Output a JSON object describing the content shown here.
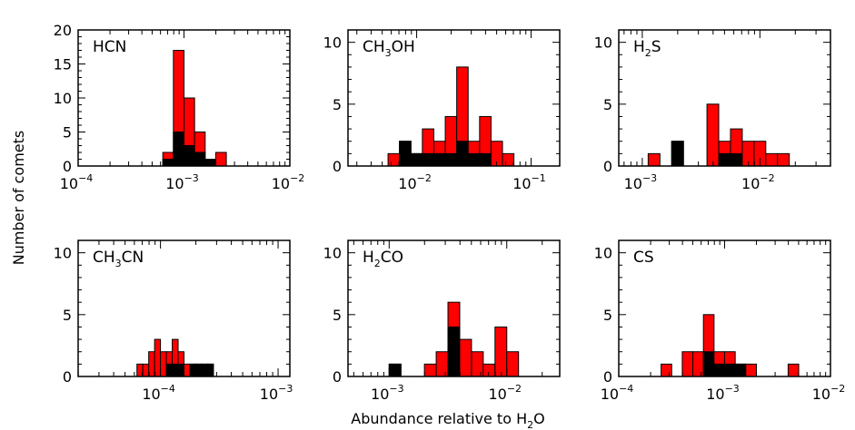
{
  "ylabel": "Number of comets",
  "xlabel_main": "Abundance relative to H",
  "xlabel_sub": "2",
  "xlabel_tail": "O",
  "colors": {
    "total": "#ff0000",
    "subset": "#000000",
    "frame": "#000000"
  },
  "chart_data": [
    {
      "type": "bar",
      "title_parts": [
        "HCN"
      ],
      "xscale": "log",
      "xlim": [
        -4,
        -2
      ],
      "xticks": [
        {
          "exp": -4,
          "label": "10",
          "sup": "−4"
        },
        {
          "exp": -3,
          "label": "10",
          "sup": "−3"
        },
        {
          "exp": -2,
          "label": "10",
          "sup": "−2"
        }
      ],
      "ylim": [
        0,
        20
      ],
      "yticks": [
        0,
        5,
        10,
        15,
        20
      ],
      "bin_width_log": 0.1,
      "bins": [
        {
          "log_left": -3.2,
          "total": 2,
          "black": 1
        },
        {
          "log_left": -3.1,
          "total": 17,
          "black": 5
        },
        {
          "log_left": -3.0,
          "total": 10,
          "black": 3
        },
        {
          "log_left": -2.9,
          "total": 5,
          "black": 2
        },
        {
          "log_left": -2.8,
          "total": 1,
          "black": 1
        },
        {
          "log_left": -2.7,
          "total": 2,
          "black": 0
        }
      ]
    },
    {
      "type": "bar",
      "title_parts": [
        "CH",
        "3",
        "OH"
      ],
      "xscale": "log",
      "xlim": [
        -2.6,
        -0.75
      ],
      "xticks": [
        {
          "exp": -2,
          "label": "10",
          "sup": "−2"
        },
        {
          "exp": -1,
          "label": "10",
          "sup": "−1"
        }
      ],
      "ylim": [
        0,
        11
      ],
      "yticks": [
        0,
        5,
        10
      ],
      "bin_width_log": 0.1,
      "bins": [
        {
          "log_left": -2.25,
          "total": 1,
          "black": 0
        },
        {
          "log_left": -2.15,
          "total": 2,
          "black": 2
        },
        {
          "log_left": -2.05,
          "total": 1,
          "black": 1
        },
        {
          "log_left": -1.95,
          "total": 3,
          "black": 1
        },
        {
          "log_left": -1.85,
          "total": 2,
          "black": 1
        },
        {
          "log_left": -1.75,
          "total": 4,
          "black": 1
        },
        {
          "log_left": -1.65,
          "total": 8,
          "black": 2
        },
        {
          "log_left": -1.55,
          "total": 2,
          "black": 1
        },
        {
          "log_left": -1.45,
          "total": 4,
          "black": 1
        },
        {
          "log_left": -1.35,
          "total": 2,
          "black": 0
        },
        {
          "log_left": -1.25,
          "total": 1,
          "black": 0
        }
      ]
    },
    {
      "type": "bar",
      "title_parts": [
        "H",
        "2",
        "S"
      ],
      "xscale": "log",
      "xlim": [
        -3.2,
        -1.4
      ],
      "xticks": [
        {
          "exp": -3,
          "label": "10",
          "sup": "−3"
        },
        {
          "exp": -2,
          "label": "10",
          "sup": "−2"
        }
      ],
      "ylim": [
        0,
        11
      ],
      "yticks": [
        0,
        5,
        10
      ],
      "bin_width_log": 0.1,
      "bins": [
        {
          "log_left": -2.95,
          "total": 1,
          "black": 0
        },
        {
          "log_left": -2.75,
          "total": 2,
          "black": 2
        },
        {
          "log_left": -2.45,
          "total": 5,
          "black": 0
        },
        {
          "log_left": -2.35,
          "total": 2,
          "black": 1
        },
        {
          "log_left": -2.25,
          "total": 3,
          "black": 1
        },
        {
          "log_left": -2.15,
          "total": 2,
          "black": 0
        },
        {
          "log_left": -2.05,
          "total": 2,
          "black": 0
        },
        {
          "log_left": -1.95,
          "total": 1,
          "black": 0
        },
        {
          "log_left": -1.85,
          "total": 1,
          "black": 0
        }
      ]
    },
    {
      "type": "bar",
      "title_parts": [
        "CH",
        "3",
        "CN"
      ],
      "xscale": "log",
      "xlim": [
        -4.7,
        -2.9
      ],
      "xticks": [
        {
          "exp": -4,
          "label": "10",
          "sup": "−4"
        },
        {
          "exp": -3,
          "label": "10",
          "sup": "−3"
        }
      ],
      "ylim": [
        0,
        11
      ],
      "yticks": [
        0,
        5,
        10
      ],
      "bin_width_log": 0.05,
      "bins": [
        {
          "log_left": -4.2,
          "total": 1,
          "black": 0
        },
        {
          "log_left": -4.15,
          "total": 1,
          "black": 0
        },
        {
          "log_left": -4.1,
          "total": 2,
          "black": 0
        },
        {
          "log_left": -4.05,
          "total": 3,
          "black": 0
        },
        {
          "log_left": -4.0,
          "total": 2,
          "black": 0
        },
        {
          "log_left": -3.95,
          "total": 2,
          "black": 1
        },
        {
          "log_left": -3.9,
          "total": 3,
          "black": 1
        },
        {
          "log_left": -3.85,
          "total": 2,
          "black": 1
        },
        {
          "log_left": -3.8,
          "total": 1,
          "black": 0
        },
        {
          "log_left": -3.75,
          "total": 1,
          "black": 1
        },
        {
          "log_left": -3.7,
          "total": 1,
          "black": 1
        },
        {
          "log_left": -3.65,
          "total": 1,
          "black": 1
        },
        {
          "log_left": -3.6,
          "total": 1,
          "black": 1
        }
      ]
    },
    {
      "type": "bar",
      "title_parts": [
        "H",
        "2",
        "CO"
      ],
      "xscale": "log",
      "xlim": [
        -3.35,
        -1.55
      ],
      "xticks": [
        {
          "exp": -3,
          "label": "10",
          "sup": "−3"
        },
        {
          "exp": -2,
          "label": "10",
          "sup": "−2"
        }
      ],
      "ylim": [
        0,
        11
      ],
      "yticks": [
        0,
        5,
        10
      ],
      "bin_width_log": 0.1,
      "bins": [
        {
          "log_left": -3.0,
          "total": 1,
          "black": 1
        },
        {
          "log_left": -2.7,
          "total": 1,
          "black": 0
        },
        {
          "log_left": -2.6,
          "total": 2,
          "black": 0
        },
        {
          "log_left": -2.5,
          "total": 6,
          "black": 4
        },
        {
          "log_left": -2.4,
          "total": 3,
          "black": 0
        },
        {
          "log_left": -2.3,
          "total": 2,
          "black": 0
        },
        {
          "log_left": -2.2,
          "total": 1,
          "black": 0
        },
        {
          "log_left": -2.1,
          "total": 4,
          "black": 0
        },
        {
          "log_left": -2.0,
          "total": 2,
          "black": 0
        }
      ]
    },
    {
      "type": "bar",
      "title_parts": [
        "CS"
      ],
      "xscale": "log",
      "xlim": [
        -4,
        -2
      ],
      "xticks": [
        {
          "exp": -4,
          "label": "10",
          "sup": "−4"
        },
        {
          "exp": -3,
          "label": "10",
          "sup": "−3"
        },
        {
          "exp": -2,
          "label": "10",
          "sup": "−2"
        }
      ],
      "ylim": [
        0,
        11
      ],
      "yticks": [
        0,
        5,
        10
      ],
      "bin_width_log": 0.1,
      "bins": [
        {
          "log_left": -3.6,
          "total": 1,
          "black": 0
        },
        {
          "log_left": -3.4,
          "total": 2,
          "black": 0
        },
        {
          "log_left": -3.3,
          "total": 2,
          "black": 0
        },
        {
          "log_left": -3.2,
          "total": 5,
          "black": 2
        },
        {
          "log_left": -3.1,
          "total": 2,
          "black": 1
        },
        {
          "log_left": -3.0,
          "total": 2,
          "black": 1
        },
        {
          "log_left": -2.9,
          "total": 1,
          "black": 1
        },
        {
          "log_left": -2.8,
          "total": 1,
          "black": 0
        },
        {
          "log_left": -2.4,
          "total": 1,
          "black": 0
        }
      ]
    }
  ]
}
